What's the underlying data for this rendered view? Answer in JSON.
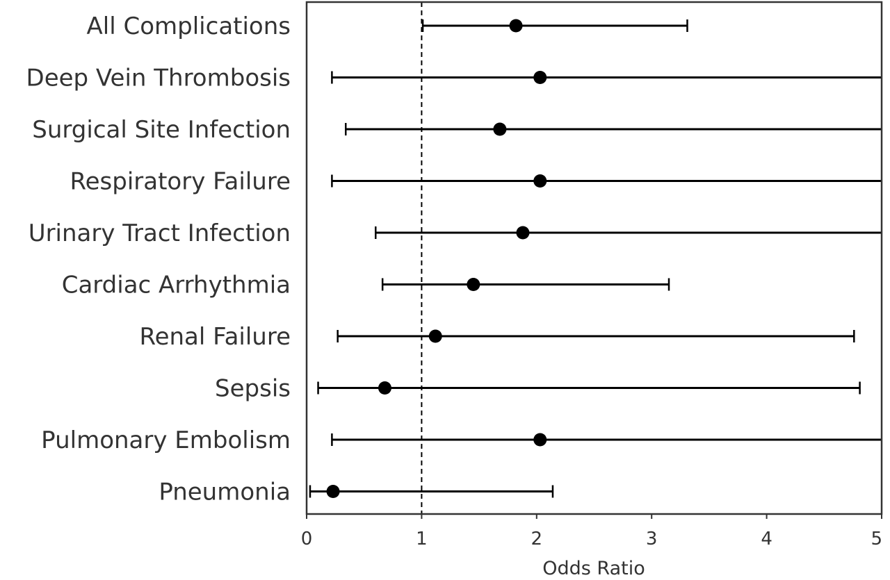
{
  "chart_data": {
    "type": "forest",
    "xlabel": "Odds Ratio",
    "ylabel": "",
    "xlim": [
      0,
      5
    ],
    "xticks": [
      0,
      1,
      2,
      3,
      4,
      5
    ],
    "reference_line": {
      "x": 1,
      "style": "dashed"
    },
    "grid": false,
    "legend": "none",
    "colors": {
      "marker": "#000000",
      "axis": "#333333",
      "text": "#333333"
    },
    "rows": [
      {
        "label": "All Complications",
        "or": 1.82,
        "lower": 1.01,
        "upper": 3.31
      },
      {
        "label": "Deep Vein Thrombosis",
        "or": 2.03,
        "lower": 0.22,
        "upper": 5.0
      },
      {
        "label": "Surgical Site Infection",
        "or": 1.68,
        "lower": 0.34,
        "upper": 5.0
      },
      {
        "label": "Respiratory Failure",
        "or": 2.03,
        "lower": 0.22,
        "upper": 5.0
      },
      {
        "label": "Urinary Tract Infection",
        "or": 1.88,
        "lower": 0.6,
        "upper": 5.0
      },
      {
        "label": "Cardiac Arrhythmia",
        "or": 1.45,
        "lower": 0.66,
        "upper": 3.15
      },
      {
        "label": "Renal Failure",
        "or": 1.12,
        "lower": 0.27,
        "upper": 4.76
      },
      {
        "label": "Sepsis",
        "or": 0.68,
        "lower": 0.1,
        "upper": 4.81
      },
      {
        "label": "Pulmonary Embolism",
        "or": 2.03,
        "lower": 0.22,
        "upper": 5.0
      },
      {
        "label": "Pneumonia",
        "or": 0.23,
        "lower": 0.03,
        "upper": 2.14
      }
    ]
  }
}
